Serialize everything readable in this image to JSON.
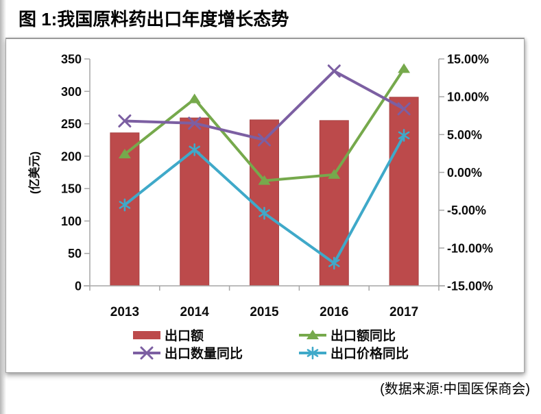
{
  "title": "图 1:我国原料药出口年度增长态势",
  "source_note": "(数据来源:中国医保商会)",
  "chart_data": {
    "type": "combo-bar-line",
    "categories": [
      "2013",
      "2014",
      "2015",
      "2016",
      "2017"
    ],
    "bar_series": {
      "key": "export-value",
      "name": "出口额",
      "color": "#BC4A4B",
      "edge_color": "#a84344",
      "axis": "left",
      "values": [
        236,
        259,
        256,
        255,
        291
      ]
    },
    "line_series": [
      {
        "key": "export-value-yoy",
        "name": "出口额同比",
        "color": "#76A94C",
        "marker": "triangle",
        "axis": "right",
        "values": [
          2.4,
          9.7,
          -1.1,
          -0.3,
          13.7
        ]
      },
      {
        "key": "export-quantity-yoy",
        "name": "出口数量同比",
        "color": "#7C5FA2",
        "marker": "x",
        "axis": "right",
        "values": [
          6.8,
          6.5,
          4.3,
          13.4,
          8.4
        ]
      },
      {
        "key": "export-price-yoy",
        "name": "出口价格同比",
        "color": "#3FA9C9",
        "marker": "star",
        "axis": "right",
        "values": [
          -4.3,
          3.0,
          -5.4,
          -12.0,
          4.9
        ]
      }
    ],
    "left_axis": {
      "title": "(亿美元)",
      "min": 0,
      "max": 350,
      "step": 50,
      "ticks": [
        "350",
        "300",
        "250",
        "200",
        "150",
        "100",
        "50",
        "0"
      ]
    },
    "right_axis": {
      "min": -15,
      "max": 15,
      "step": 5,
      "ticks": [
        "15.00%",
        "10.00%",
        "5.00%",
        "0.00%",
        "-5.00%",
        "-10.00%",
        "-15.00%"
      ]
    },
    "grid": false,
    "legend_position": "bottom",
    "axis_color": "#a6a6a6"
  }
}
